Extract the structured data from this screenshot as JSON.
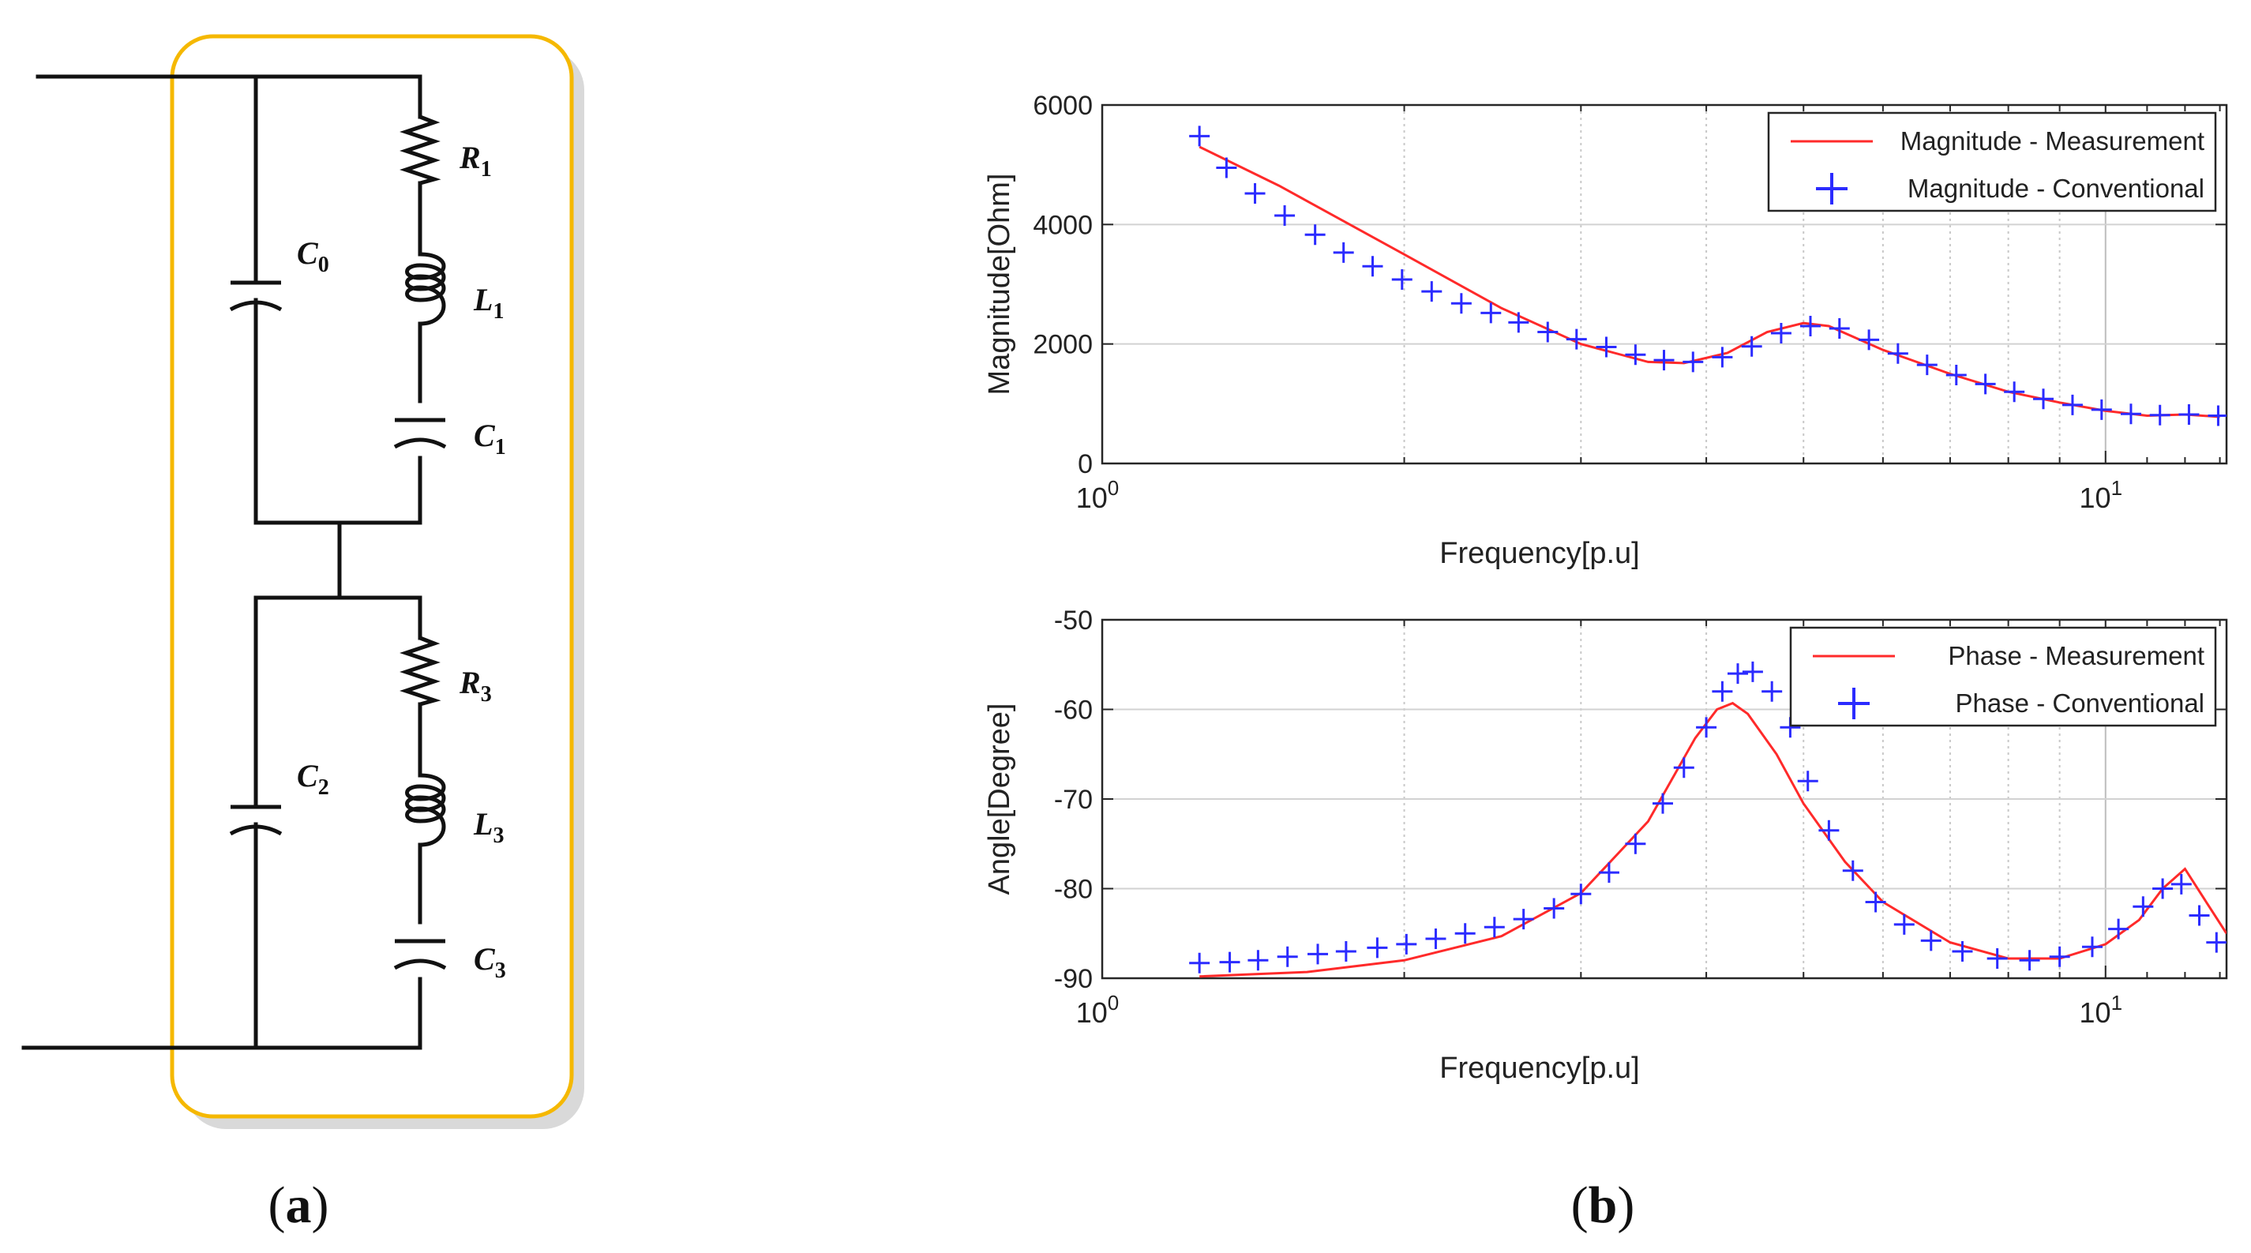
{
  "circuit": {
    "labels": [
      "C0",
      "R1",
      "L1",
      "C1",
      "C2",
      "R3",
      "L3",
      "C3"
    ],
    "label_letters": [
      "C",
      "R",
      "L",
      "C",
      "C",
      "R",
      "L",
      "C"
    ],
    "label_subs": [
      "0",
      "1",
      "1",
      "1",
      "2",
      "3",
      "3",
      "3"
    ],
    "colors": {
      "box": "#f5b800",
      "shadow": "#d9d9d9",
      "wire": "#111111"
    }
  },
  "captions": {
    "a": {
      "open": "(",
      "letter": "a",
      "close": ")"
    },
    "b": {
      "open": "(",
      "letter": "b",
      "close": ")"
    }
  },
  "chart_data": [
    {
      "type": "line",
      "name": "magnitude",
      "xscale": "log",
      "xlim": [
        1,
        13.2
      ],
      "ylim": [
        0,
        6000
      ],
      "yticks": [
        0,
        2000,
        4000,
        6000
      ],
      "ytick_labels": [
        "0",
        "2000",
        "4000",
        "6000"
      ],
      "xtick_labels": [
        {
          "base": "10",
          "exp": "0"
        },
        {
          "base": "10",
          "exp": "1"
        }
      ],
      "xlabel": "Frequency[p.u]",
      "ylabel": "Magnitude[Ohm]",
      "grid": true,
      "legend": {
        "position": "top-right",
        "entries": [
          "Magnitude - Measurement",
          "Magnitude - Conventional"
        ]
      },
      "series": [
        {
          "name": "Magnitude - Measurement",
          "style": "line",
          "color": "#ff2a2a",
          "x": [
            1.25,
            1.5,
            2.0,
            2.5,
            3.0,
            3.5,
            3.8,
            4.2,
            4.6,
            5.0,
            5.3,
            6.0,
            7.0,
            8.0,
            9.0,
            10.0,
            11.0,
            12.0,
            13.0
          ],
          "y": [
            5300,
            4650,
            3500,
            2600,
            2000,
            1700,
            1680,
            1850,
            2200,
            2350,
            2300,
            1900,
            1500,
            1200,
            1020,
            880,
            800,
            820,
            780
          ]
        },
        {
          "name": "Magnitude - Conventional",
          "style": "plus",
          "color": "#2b2bff",
          "x": [
            1.25,
            1.33,
            1.42,
            1.52,
            1.63,
            1.74,
            1.86,
            1.99,
            2.13,
            2.28,
            2.44,
            2.6,
            2.78,
            2.97,
            3.18,
            3.4,
            3.63,
            3.88,
            4.15,
            4.44,
            4.75,
            5.08,
            5.43,
            5.81,
            6.21,
            6.64,
            7.1,
            7.59,
            8.11,
            8.67,
            9.27,
            9.91,
            10.6,
            11.33,
            12.11,
            12.95
          ],
          "y": [
            5480,
            4950,
            4520,
            4150,
            3830,
            3530,
            3300,
            3080,
            2880,
            2680,
            2520,
            2360,
            2200,
            2080,
            1950,
            1820,
            1730,
            1700,
            1780,
            1960,
            2180,
            2300,
            2260,
            2070,
            1840,
            1650,
            1480,
            1330,
            1200,
            1080,
            980,
            900,
            830,
            810,
            820,
            800
          ]
        }
      ]
    },
    {
      "type": "line",
      "name": "phase",
      "xscale": "log",
      "xlim": [
        1,
        13.2
      ],
      "ylim": [
        -90,
        -50
      ],
      "yticks": [
        -90,
        -80,
        -70,
        -60,
        -50
      ],
      "ytick_labels": [
        "-90",
        "-80",
        "-70",
        "-60",
        "-50"
      ],
      "xtick_labels": [
        {
          "base": "10",
          "exp": "0"
        },
        {
          "base": "10",
          "exp": "1"
        }
      ],
      "xlabel": "Frequency[p.u]",
      "ylabel": "Angle[Degree]",
      "grid": true,
      "legend": {
        "position": "top-right",
        "entries": [
          "Phase - Measurement",
          "Phase - Conventional"
        ]
      },
      "series": [
        {
          "name": "Phase - Measurement",
          "style": "line",
          "color": "#ff2a2a",
          "x": [
            1.25,
            1.6,
            2.0,
            2.5,
            3.0,
            3.5,
            3.9,
            4.1,
            4.25,
            4.4,
            4.7,
            5.0,
            5.5,
            6.0,
            7.0,
            8.0,
            9.0,
            10.0,
            10.8,
            11.4,
            12.0,
            12.6,
            13.2
          ],
          "y": [
            -89.8,
            -89.3,
            -88,
            -85.3,
            -80.5,
            -72.5,
            -63.2,
            -60,
            -59.3,
            -60.5,
            -65,
            -70.5,
            -77,
            -81.5,
            -86,
            -87.8,
            -87.8,
            -86.2,
            -83.5,
            -80,
            -77.8,
            -81.5,
            -85
          ]
        },
        {
          "name": "Phase - Conventional",
          "style": "plus",
          "color": "#2b2bff",
          "x": [
            1.25,
            1.34,
            1.43,
            1.53,
            1.64,
            1.75,
            1.88,
            2.01,
            2.15,
            2.3,
            2.46,
            2.63,
            2.82,
            3.0,
            3.2,
            3.4,
            3.62,
            3.8,
            4.0,
            4.15,
            4.3,
            4.45,
            4.65,
            4.85,
            5.05,
            5.3,
            5.6,
            5.9,
            6.3,
            6.7,
            7.2,
            7.8,
            8.4,
            9.0,
            9.7,
            10.3,
            10.9,
            11.4,
            11.9,
            12.4,
            12.9
          ],
          "y": [
            -88.3,
            -88.2,
            -88,
            -87.6,
            -87.3,
            -87,
            -86.6,
            -86.2,
            -85.6,
            -85,
            -84.3,
            -83.4,
            -82.2,
            -80.6,
            -78.2,
            -75,
            -70.5,
            -66.5,
            -62,
            -58,
            -56,
            -55.8,
            -58,
            -62,
            -68,
            -73.5,
            -78,
            -81.5,
            -84,
            -85.8,
            -87,
            -87.8,
            -88,
            -87.6,
            -86.5,
            -84.5,
            -82,
            -80,
            -79.5,
            -83,
            -86
          ]
        }
      ]
    }
  ]
}
